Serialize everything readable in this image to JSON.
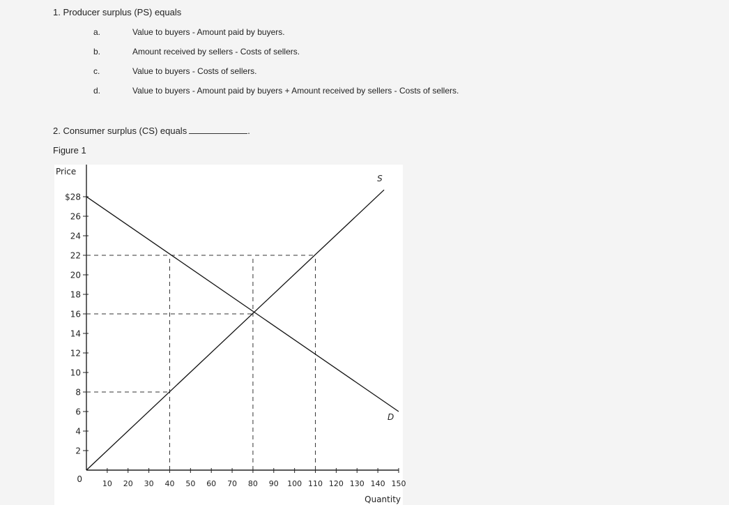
{
  "question1": {
    "text": "1. Producer surplus (PS) equals",
    "options": [
      {
        "letter": "a.",
        "text": "Value to buyers - Amount paid by buyers."
      },
      {
        "letter": "b.",
        "text": "Amount received by sellers - Costs of sellers."
      },
      {
        "letter": "c.",
        "text": "Value to buyers - Costs of sellers."
      },
      {
        "letter": "d.",
        "text": "Value to buyers - Amount paid by buyers + Amount received by sellers - Costs of sellers."
      }
    ]
  },
  "question2": {
    "text": "2. Consumer surplus (CS) equals",
    "blank_suffix": "."
  },
  "figure_label": "Figure 1",
  "chart_data": {
    "type": "line",
    "xlabel": "Quantity",
    "ylabel": "Price",
    "xlim": [
      0,
      150
    ],
    "ylim": [
      0,
      30
    ],
    "origin_label": "0",
    "x_ticks": [
      10,
      20,
      30,
      40,
      50,
      60,
      70,
      80,
      90,
      100,
      110,
      120,
      130,
      140,
      150
    ],
    "y_ticks": [
      {
        "value": 2,
        "label": "2"
      },
      {
        "value": 4,
        "label": "4"
      },
      {
        "value": 6,
        "label": "6"
      },
      {
        "value": 8,
        "label": "8"
      },
      {
        "value": 10,
        "label": "10"
      },
      {
        "value": 12,
        "label": "12"
      },
      {
        "value": 14,
        "label": "14"
      },
      {
        "value": 16,
        "label": "16"
      },
      {
        "value": 18,
        "label": "18"
      },
      {
        "value": 20,
        "label": "20"
      },
      {
        "value": 22,
        "label": "22"
      },
      {
        "value": 24,
        "label": "24"
      },
      {
        "value": 26,
        "label": "26"
      },
      {
        "value": 28,
        "label": "$28"
      }
    ],
    "series": [
      {
        "name": "D",
        "x": [
          0,
          150
        ],
        "y": [
          28,
          6
        ]
      },
      {
        "name": "S",
        "x": [
          0,
          143
        ],
        "y": [
          0,
          28.7
        ]
      }
    ],
    "reference_lines": [
      {
        "axis": "y",
        "value": 22,
        "from": 0,
        "to": 110
      },
      {
        "axis": "y",
        "value": 16,
        "from": 0,
        "to": 80
      },
      {
        "axis": "y",
        "value": 8,
        "from": 0,
        "to": 40
      },
      {
        "axis": "x",
        "value": 40,
        "from": 0,
        "to": 22
      },
      {
        "axis": "x",
        "value": 80,
        "from": 0,
        "to": 22
      },
      {
        "axis": "x",
        "value": 110,
        "from": 0,
        "to": 22
      }
    ]
  }
}
